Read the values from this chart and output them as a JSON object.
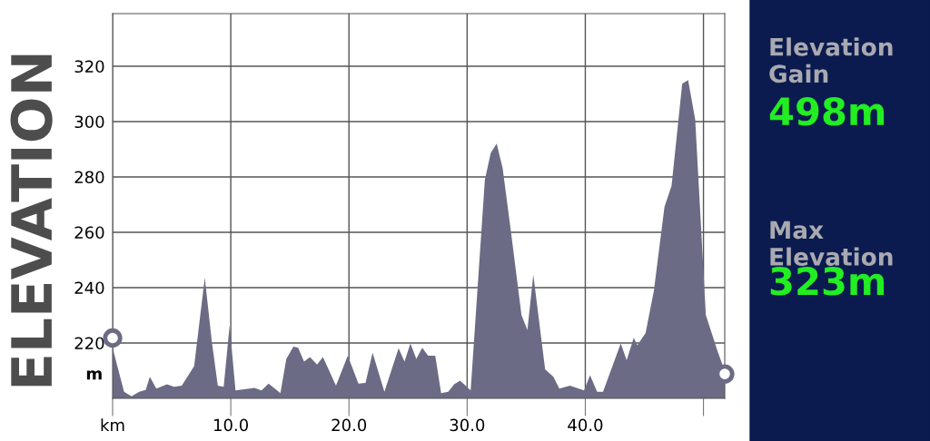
{
  "chart_data": {
    "type": "area",
    "title": "ELEVATION",
    "ylabel": "m",
    "x": [
      0,
      0.97,
      1.6,
      2.25,
      2.8,
      3.15,
      3.7,
      4.6,
      5.2,
      5.85,
      6.9,
      7.8,
      8.4,
      8.9,
      9.4,
      9.9,
      10.4,
      12.0,
      12.6,
      13.2,
      14.2,
      14.7,
      15.3,
      15.7,
      16.2,
      16.7,
      17.3,
      17.8,
      18.9,
      19.9,
      20.8,
      21.4,
      22.0,
      23.0,
      24.2,
      24.7,
      25.2,
      25.7,
      26.2,
      26.7,
      27.3,
      27.8,
      28.4,
      28.9,
      29.4,
      30.3,
      31.5,
      32.0,
      32.5,
      33.0,
      33.7,
      34.6,
      35.1,
      35.6,
      36.6,
      37.3,
      37.8,
      38.7,
      39.9,
      40.4,
      41.0,
      41.5,
      43.0,
      43.5,
      44.1,
      44.4,
      45.1,
      45.8,
      46.7,
      47.3,
      48.2,
      48.7,
      49.3,
      50.2,
      51.2,
      51.6,
      51.8
    ],
    "series": [
      {
        "color": "#6c6b85",
        "values": [
          218.2,
          202.4,
          200.7,
          202.4,
          203,
          207.8,
          203.5,
          205.1,
          204.2,
          204.6,
          211.6,
          243.6,
          220.3,
          204.6,
          204.2,
          226.3,
          202.9,
          203.8,
          202.9,
          205.3,
          201.9,
          214.3,
          218.7,
          218.3,
          213.3,
          214.9,
          212.2,
          214.9,
          204.6,
          215.4,
          205.3,
          205.6,
          216.5,
          202.4,
          218.1,
          213.3,
          219.8,
          214.3,
          218.3,
          215.4,
          215.4,
          201.9,
          202.4,
          205.1,
          206.4,
          202.9,
          278.9,
          288.7,
          292.0,
          283.3,
          260.5,
          230.1,
          224.7,
          244.7,
          210.5,
          207.8,
          203.5,
          204.6,
          202.9,
          208.4,
          202.4,
          202.4,
          219.8,
          213.8,
          221.9,
          219.2,
          223.6,
          238.8,
          269.2,
          276.8,
          313.7,
          315.0,
          300.7,
          230.1,
          217.0,
          212.2,
          211
        ]
      },
      {
        "type": "scatter",
        "color": "#6c6b85",
        "x": [
          0,
          51.8
        ],
        "values": [
          221.8,
          208.8
        ],
        "marker": "circle"
      }
    ],
    "xlim": [
      0,
      51.8
    ],
    "ylim": [
      200,
      339
    ],
    "xticks": [
      {
        "value": 0,
        "label": "km"
      },
      {
        "value": 10,
        "label": "10.0"
      },
      {
        "value": 20,
        "label": "20.0"
      },
      {
        "value": 30,
        "label": "30.0"
      },
      {
        "value": 40,
        "label": "40.0"
      },
      {
        "value": 50,
        "label": null
      }
    ],
    "yticks": [
      220,
      240,
      260,
      280,
      300,
      320
    ],
    "grid": true,
    "legend": false,
    "annotations": [
      "Elevation Gain",
      "498m",
      "Max Elevation",
      "323m"
    ]
  }
}
